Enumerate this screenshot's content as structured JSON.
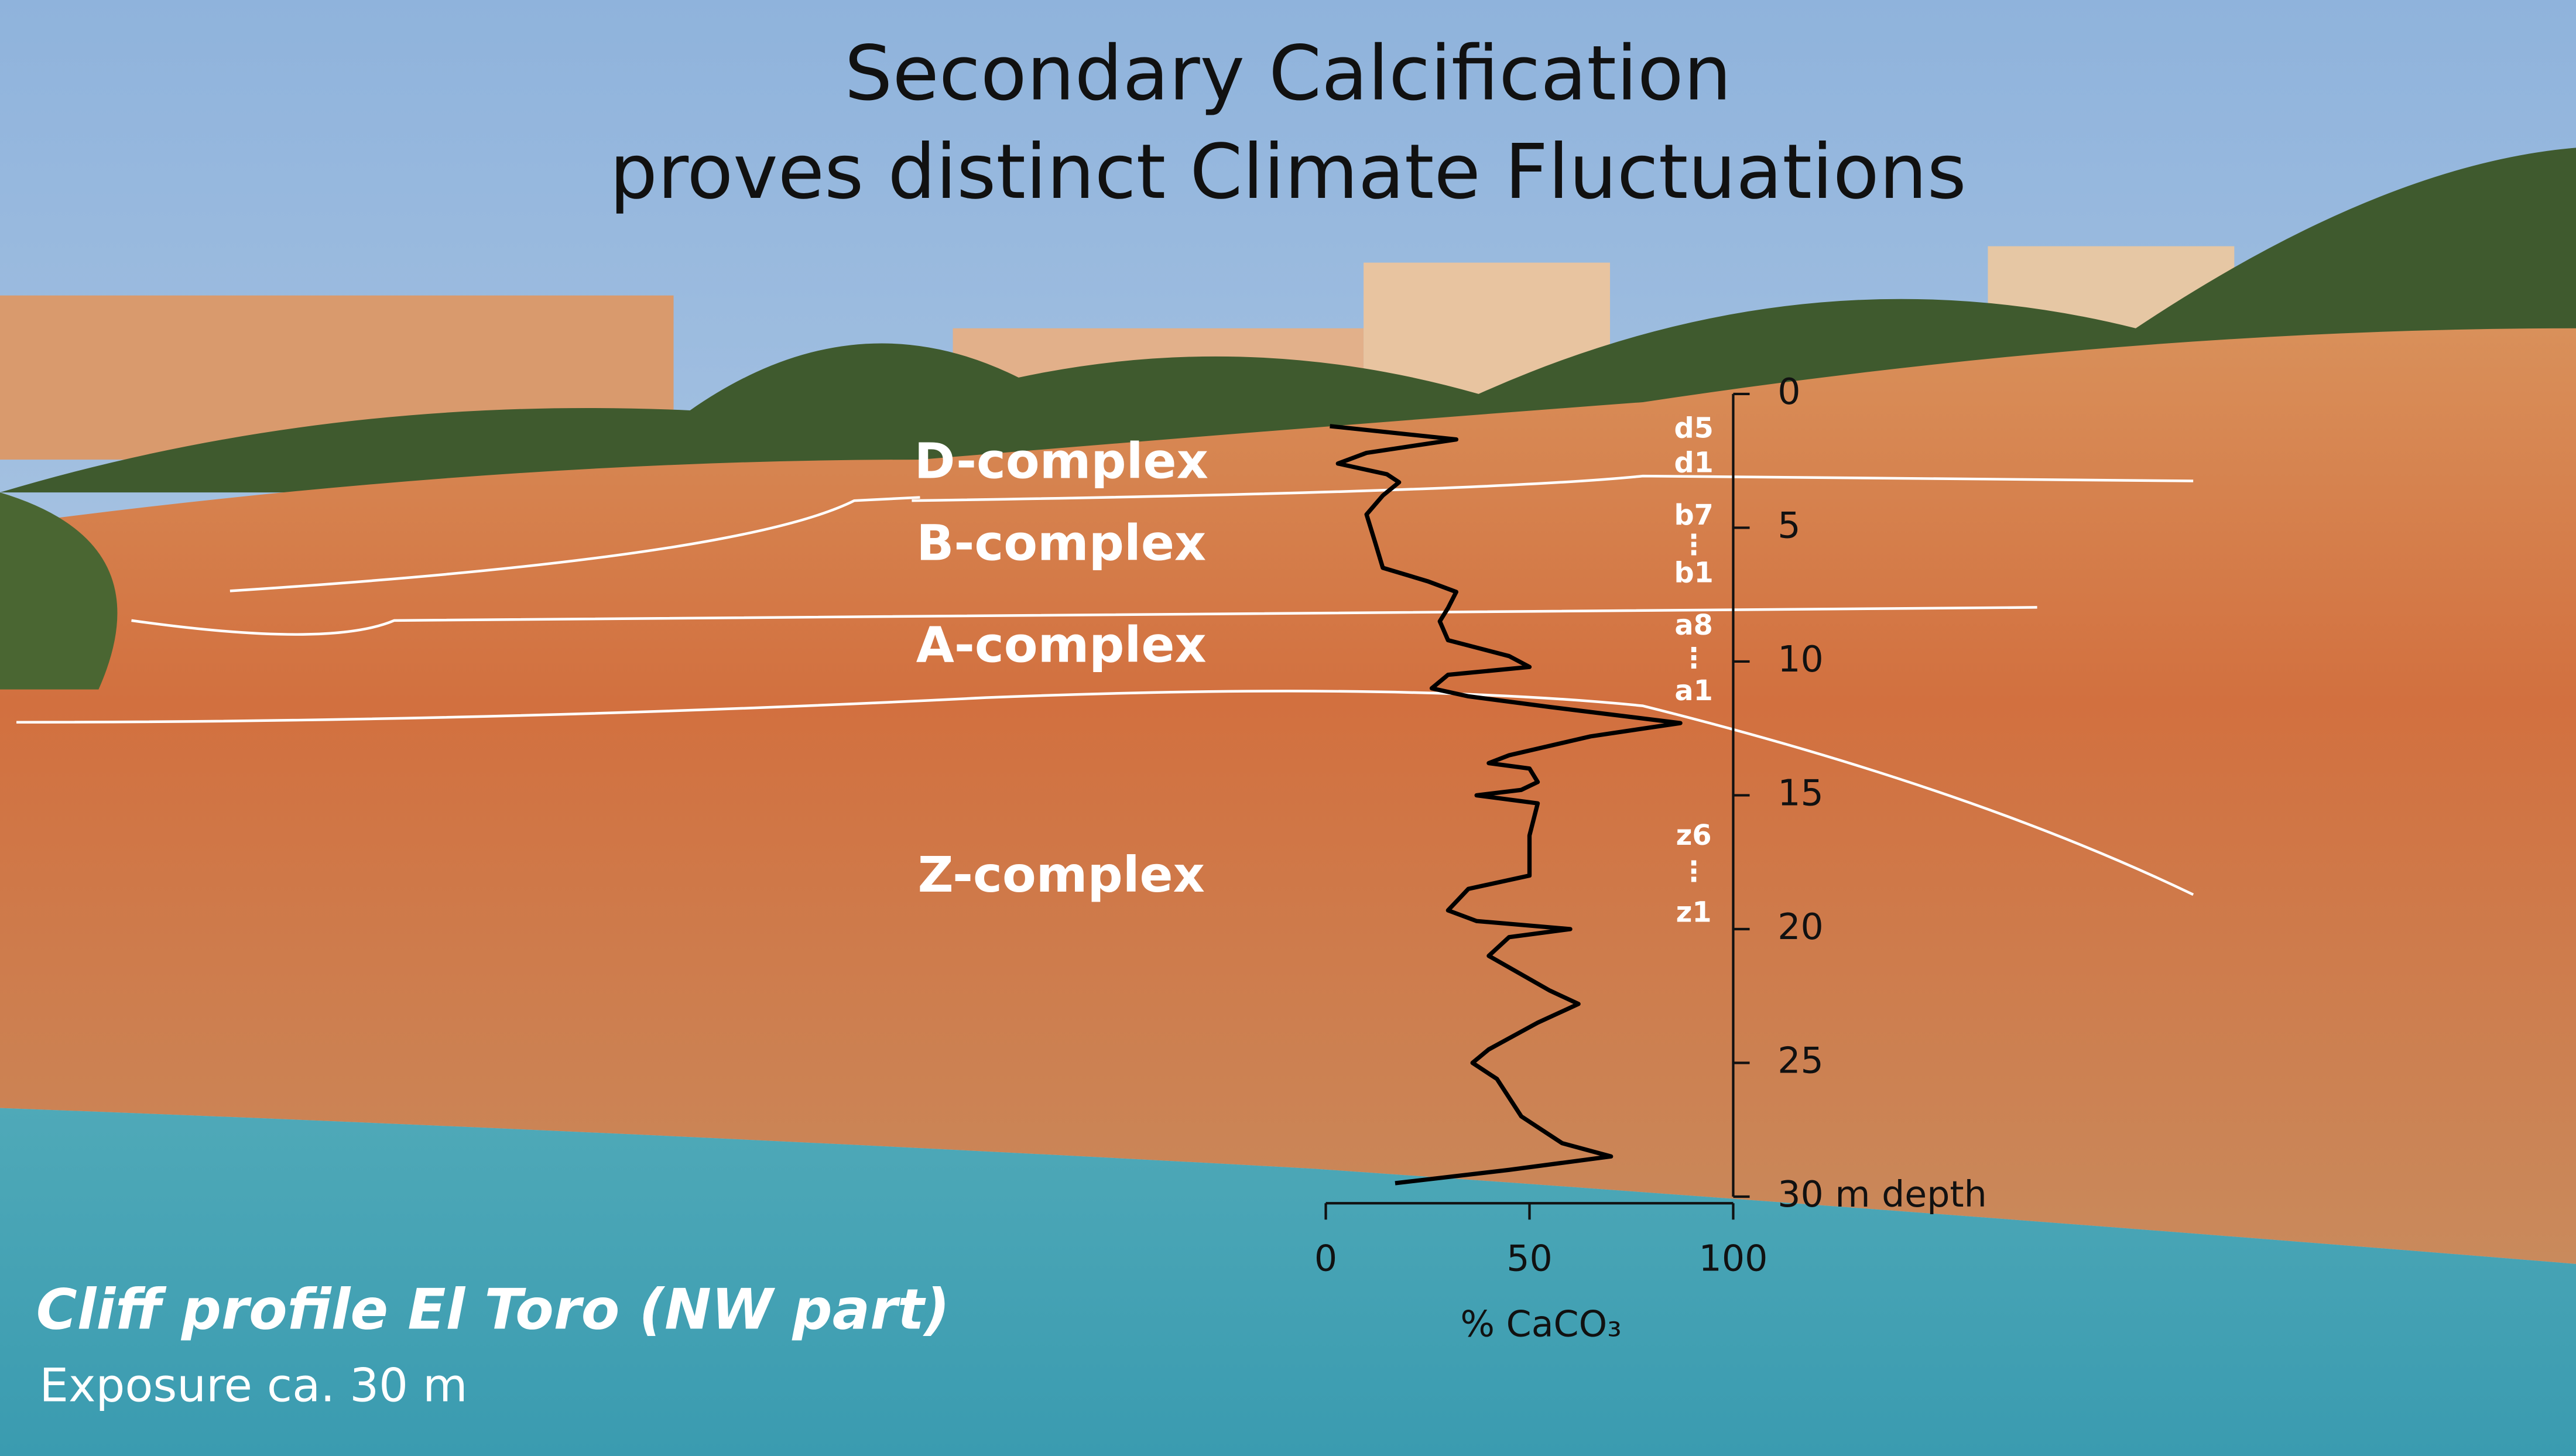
{
  "chart_data": {
    "type": "line",
    "orientation": "vertical",
    "title": [
      "Secondary Calcification",
      "proves distinct Climate Fluctuations"
    ],
    "ylabel": "% CaCO₃",
    "x": [
      1.2,
      1.7,
      2.2,
      2.6,
      3.0,
      3.3,
      3.8,
      4.5,
      5.5,
      6.5,
      7.0,
      7.4,
      8.0,
      8.5,
      9.2,
      9.8,
      10.2,
      10.5,
      11.0,
      11.3,
      11.7,
      12.3,
      12.8,
      13.5,
      13.8,
      14.0,
      14.5,
      14.8,
      15.0,
      15.3,
      16.5,
      18.0,
      18.5,
      19.3,
      19.7,
      20.0,
      20.3,
      21.0,
      22.3,
      22.8,
      23.5,
      24.5,
      25.0,
      25.6,
      27.0,
      28.0,
      28.5,
      29.0,
      29.5
    ],
    "values": [
      1,
      32,
      10,
      3,
      15,
      18,
      14,
      10,
      12,
      14,
      25,
      32,
      30,
      28,
      30,
      45,
      50,
      30,
      26,
      35,
      55,
      87,
      65,
      45,
      40,
      50,
      52,
      48,
      37,
      52,
      50,
      50,
      35,
      30,
      37,
      60,
      45,
      40,
      55,
      62,
      52,
      40,
      36,
      42,
      48,
      58,
      70,
      45,
      17
    ],
    "color": "#000000",
    "xlim": [
      0,
      30
    ],
    "xticks": [
      0,
      5,
      10,
      15,
      20,
      25,
      {
        "value": 30,
        "label": "30 m depth"
      }
    ],
    "ylim": [
      0,
      100
    ],
    "yticks": [
      0,
      50,
      100
    ],
    "annotations": [
      "D-complex",
      "B-complex",
      "A-complex",
      "Z-complex"
    ],
    "sublabels": [
      "d5",
      "d1",
      "b7",
      "⋮",
      "b1",
      "a8",
      "⋮",
      "a1",
      "z6",
      "⋮",
      "z1"
    ],
    "caption": [
      "Cliff profile El Toro (NW part)",
      "Exposure ca. 30 m"
    ]
  }
}
